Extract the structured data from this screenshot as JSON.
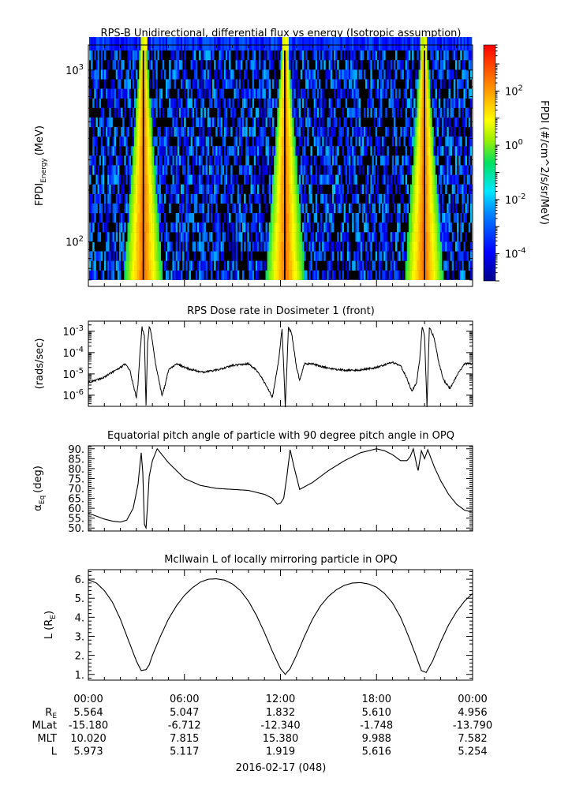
{
  "chart_data": [
    {
      "type": "heatmap",
      "title": "RPS-B  Unidirectional, differential flux vs energy (Isotropic assumption)",
      "ylabel": "FPDI",
      "ylabel_sub": "Energy",
      "ylabel_unit": "(MeV)",
      "yscale": "log",
      "ylim": [
        55,
        1400
      ],
      "yticks": [
        {
          "value": 100,
          "base": "10",
          "exp": "2"
        },
        {
          "value": 1000,
          "base": "10",
          "exp": "3"
        }
      ],
      "xlim": [
        0,
        24
      ],
      "colorbar": {
        "label": "FPDI (#/cm^2/s/sr/MeV)",
        "scale": "log",
        "range": [
          1e-05,
          5000
        ],
        "ticks": [
          {
            "value": 0.0001,
            "base": "10",
            "exp": "-4"
          },
          {
            "value": 0.01,
            "base": "10",
            "exp": "-2"
          },
          {
            "value": 1,
            "base": "10",
            "exp": "0"
          },
          {
            "value": 100,
            "base": "10",
            "exp": "2"
          }
        ]
      },
      "belt_passes_hours": [
        3.4,
        12.3,
        21.0
      ]
    },
    {
      "type": "line",
      "title": "RPS  Dose rate in Dosimeter 1 (front)",
      "ylabel": "(rads/sec)",
      "yscale": "log",
      "ylim": [
        3e-07,
        0.003
      ],
      "yticks": [
        {
          "value": 1e-06,
          "base": "10",
          "exp": "-6"
        },
        {
          "value": 1e-05,
          "base": "10",
          "exp": "-5"
        },
        {
          "value": 0.0001,
          "base": "10",
          "exp": "-4"
        },
        {
          "value": 0.001,
          "base": "10",
          "exp": "-3"
        }
      ],
      "xlim": [
        0,
        24
      ],
      "x": [
        0,
        0.5,
        1.0,
        1.5,
        2.0,
        2.3,
        2.6,
        2.8,
        3.0,
        3.1,
        3.2,
        3.35,
        3.5,
        3.6,
        3.7,
        3.8,
        3.9,
        4.0,
        4.2,
        4.4,
        4.6,
        4.8,
        5.0,
        5.5,
        6.0,
        7.0,
        8.0,
        9.0,
        10.0,
        10.5,
        11.0,
        11.5,
        11.9,
        12.1,
        12.3,
        12.5,
        12.7,
        13.0,
        13.2,
        13.5,
        14.0,
        15.0,
        16.0,
        17.0,
        18.0,
        19.0,
        19.5,
        19.9,
        20.2,
        20.5,
        20.7,
        20.85,
        21.0,
        21.15,
        21.3,
        21.6,
        21.9,
        22.2,
        22.6,
        23.0,
        23.5,
        24.0
      ],
      "values": [
        4e-06,
        5e-06,
        7e-06,
        1.2e-05,
        2e-05,
        3e-05,
        1.5e-05,
        3e-06,
        8e-07,
        3e-06,
        5e-05,
        0.0016,
        0.0006,
        3e-07,
        0.0003,
        0.0016,
        0.001,
        0.0003,
        3e-05,
        5e-06,
        1e-06,
        3e-06,
        1.5e-05,
        3e-05,
        2e-05,
        1.2e-05,
        1.5e-05,
        2.5e-05,
        3e-05,
        1.5e-05,
        4e-06,
        8e-07,
        5e-05,
        0.0014,
        3e-07,
        0.0015,
        0.0008,
        2e-05,
        5e-06,
        3e-05,
        3e-05,
        1.8e-05,
        1.5e-05,
        1.5e-05,
        2e-05,
        3.5e-05,
        2.5e-05,
        6e-06,
        1.5e-06,
        4e-06,
        5e-05,
        0.0016,
        0.0006,
        3e-07,
        0.0015,
        0.0005,
        3e-05,
        5e-06,
        2e-06,
        8e-06,
        3e-05,
        3e-05
      ]
    },
    {
      "type": "line",
      "title": "Equatorial pitch angle of particle with 90 degree pitch angle in OPQ",
      "ylabel": "α",
      "ylabel_sub": "Eq",
      "ylabel_unit": "(deg)",
      "ylim": [
        48.5,
        91.5
      ],
      "yticks": [
        50,
        55,
        60,
        65,
        70,
        75,
        80,
        85,
        90
      ],
      "ytick_labels": [
        "50.",
        "55.",
        "60.",
        "65.",
        "70.",
        "75.",
        "80.",
        "85.",
        "90."
      ],
      "xlim": [
        0,
        24
      ],
      "x": [
        0,
        0.5,
        1.0,
        1.5,
        2.0,
        2.4,
        2.8,
        3.1,
        3.3,
        3.4,
        3.5,
        3.6,
        3.7,
        3.8,
        4.0,
        4.3,
        4.6,
        5.0,
        5.5,
        6.0,
        7.0,
        8.0,
        9.0,
        10.0,
        11.0,
        11.5,
        11.8,
        12.0,
        12.2,
        12.4,
        12.6,
        12.9,
        13.2,
        14.0,
        15.0,
        16.0,
        17.0,
        18.0,
        18.5,
        19.0,
        19.5,
        19.9,
        20.1,
        20.3,
        20.5,
        20.6,
        20.8,
        21.0,
        21.2,
        21.6,
        22.0,
        22.5,
        23.0,
        23.5,
        24.0
      ],
      "values": [
        57.5,
        56,
        54.5,
        53.5,
        53,
        54,
        60,
        72,
        88,
        78,
        52,
        50,
        62,
        76,
        84,
        90,
        87,
        83,
        79,
        75,
        71.5,
        70,
        69.5,
        69,
        67,
        65,
        62,
        62.5,
        65,
        76,
        89.5,
        79,
        69.5,
        73,
        79,
        84,
        88,
        90,
        89,
        87,
        84,
        84,
        86,
        90,
        82,
        79,
        89,
        85,
        89.5,
        81,
        74,
        67,
        62,
        59,
        58
      ]
    },
    {
      "type": "line",
      "title": "McIlwain L of locally mirroring particle in OPQ",
      "ylabel": "L",
      "ylabel_sub": "E",
      "ylabel_unit": "(R",
      "ylim": [
        0.7,
        6.5
      ],
      "yticks": [
        1,
        2,
        3,
        4,
        5,
        6
      ],
      "ytick_labels": [
        "1.",
        "2.",
        "3.",
        "4.",
        "5.",
        "6."
      ],
      "xlim": [
        0,
        24
      ],
      "x": [
        0,
        0.5,
        1.0,
        1.5,
        2.0,
        2.5,
        3.0,
        3.3,
        3.6,
        3.8,
        4.0,
        4.5,
        5.0,
        5.5,
        6.0,
        6.5,
        7.0,
        7.5,
        8.0,
        8.5,
        9.0,
        9.5,
        10.0,
        10.5,
        11.0,
        11.5,
        12.0,
        12.3,
        12.6,
        13.0,
        13.5,
        14.0,
        14.5,
        15.0,
        15.5,
        16.0,
        16.5,
        17.0,
        17.5,
        18.0,
        18.5,
        19.0,
        19.5,
        20.0,
        20.5,
        20.8,
        21.1,
        21.5,
        22.0,
        22.5,
        23.0,
        23.5,
        24.0
      ],
      "values": [
        5.97,
        5.8,
        5.4,
        4.8,
        3.9,
        2.8,
        1.7,
        1.2,
        1.25,
        1.5,
        2.0,
        3.0,
        3.9,
        4.6,
        5.15,
        5.55,
        5.85,
        6.0,
        6.02,
        5.95,
        5.75,
        5.4,
        4.85,
        4.1,
        3.2,
        2.2,
        1.3,
        1.0,
        1.3,
        2.0,
        3.0,
        3.9,
        4.6,
        5.1,
        5.45,
        5.68,
        5.8,
        5.82,
        5.75,
        5.58,
        5.25,
        4.75,
        4.0,
        3.0,
        1.9,
        1.2,
        1.1,
        1.7,
        2.7,
        3.6,
        4.3,
        4.85,
        5.25
      ]
    }
  ],
  "x_axis": {
    "tick_labels": [
      "00:00",
      "06:00",
      "12:00",
      "18:00",
      "00:00"
    ],
    "tick_hours": [
      0,
      6,
      12,
      18,
      24
    ],
    "date_label": "2016-02-17 (048)",
    "ephemeris": [
      {
        "name": "R",
        "name_sub": "E",
        "values": [
          "5.564",
          "5.047",
          "1.832",
          "5.610",
          "4.956"
        ]
      },
      {
        "name": "MLat",
        "name_sub": "",
        "values": [
          "-15.180",
          "-6.712",
          "-12.340",
          "-1.748",
          "-13.790"
        ]
      },
      {
        "name": "MLT",
        "name_sub": "",
        "values": [
          "10.020",
          "7.815",
          "15.380",
          "9.988",
          "7.582"
        ]
      },
      {
        "name": "L",
        "name_sub": "",
        "values": [
          "5.973",
          "5.117",
          "1.919",
          "5.616",
          "5.254"
        ]
      }
    ]
  }
}
